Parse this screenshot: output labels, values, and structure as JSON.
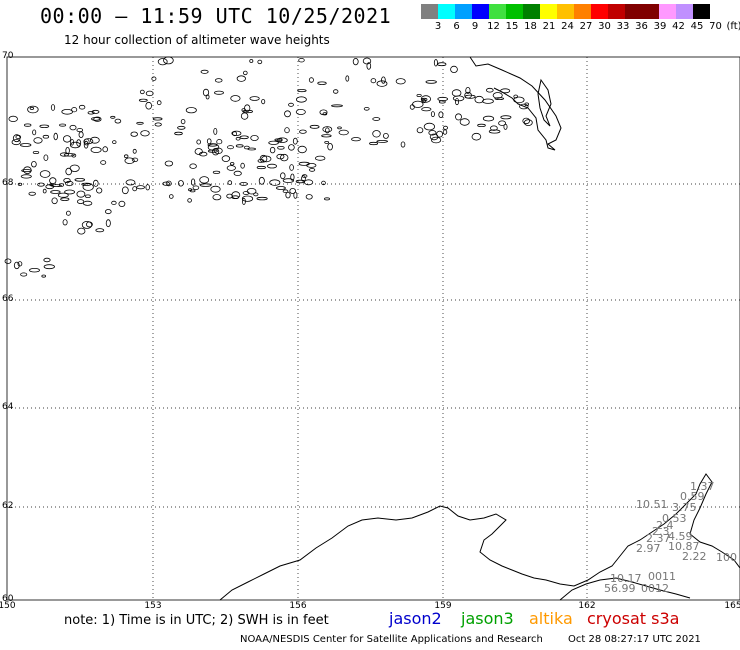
{
  "header": {
    "title": "00:00 – 11:59 UTC 10/25/2021",
    "subtitle": "12 hour collection of altimeter wave heights"
  },
  "color_scale": {
    "colors": [
      "#808080",
      "#00ffff",
      "#00a0ff",
      "#0000ff",
      "#40e040",
      "#00c000",
      "#008000",
      "#ffff00",
      "#ffc000",
      "#ff8000",
      "#ff0000",
      "#c00000",
      "#800000",
      "#800000",
      "#ff99ff",
      "#c090ff",
      "#000000"
    ],
    "labels": [
      "3",
      "6",
      "9",
      "12",
      "15",
      "18",
      "21",
      "24",
      "27",
      "30",
      "33",
      "36",
      "39",
      "42",
      "45",
      "70",
      "(ft)"
    ]
  },
  "axes": {
    "latitudes": [
      "70",
      "68",
      "66",
      "64",
      "62",
      "60"
    ],
    "longitudes": [
      "150",
      "153",
      "156",
      "159",
      "162",
      "165"
    ]
  },
  "wave_readings": [
    {
      "value": "1.37",
      "color": "#808080"
    },
    {
      "value": "0.59",
      "color": "#808080"
    },
    {
      "value": "10.51",
      "color": "#0000c0"
    },
    {
      "value": "3.75",
      "color": "#00c0c0"
    },
    {
      "value": "0.53",
      "color": "#808080"
    },
    {
      "value": "2.4",
      "color": "#808080"
    },
    {
      "value": "2.3",
      "color": "#808080"
    },
    {
      "value": "2.37",
      "color": "#808080"
    },
    {
      "value": "4.59",
      "color": "#808080"
    },
    {
      "value": "2.97",
      "color": "#808080"
    },
    {
      "value": "10.87",
      "color": "#008000"
    },
    {
      "value": "2.22",
      "color": "#808080"
    },
    {
      "value": "100",
      "color": "#800000"
    },
    {
      "value": "10.17",
      "color": "#0000c0"
    },
    {
      "value": "0011",
      "color": "#800000"
    },
    {
      "value": "56.99",
      "color": "#ff88ff"
    },
    {
      "value": "0012",
      "color": "#800000"
    }
  ],
  "note": "note: 1) Time is in UTC; 2) SWH is in feet",
  "missions": [
    {
      "name": "jason2",
      "color": "#0000cc"
    },
    {
      "name": "jason3",
      "color": "#00a000"
    },
    {
      "name": "altika",
      "color": "#ff9900"
    },
    {
      "name": "cryosat s3a",
      "color": "#cc0000"
    }
  ],
  "footer": {
    "credit": "NOAA/NESDIS Center for Satellite Applications and Research",
    "timestamp": "Oct 28 08:27:17 UTC 2021"
  }
}
